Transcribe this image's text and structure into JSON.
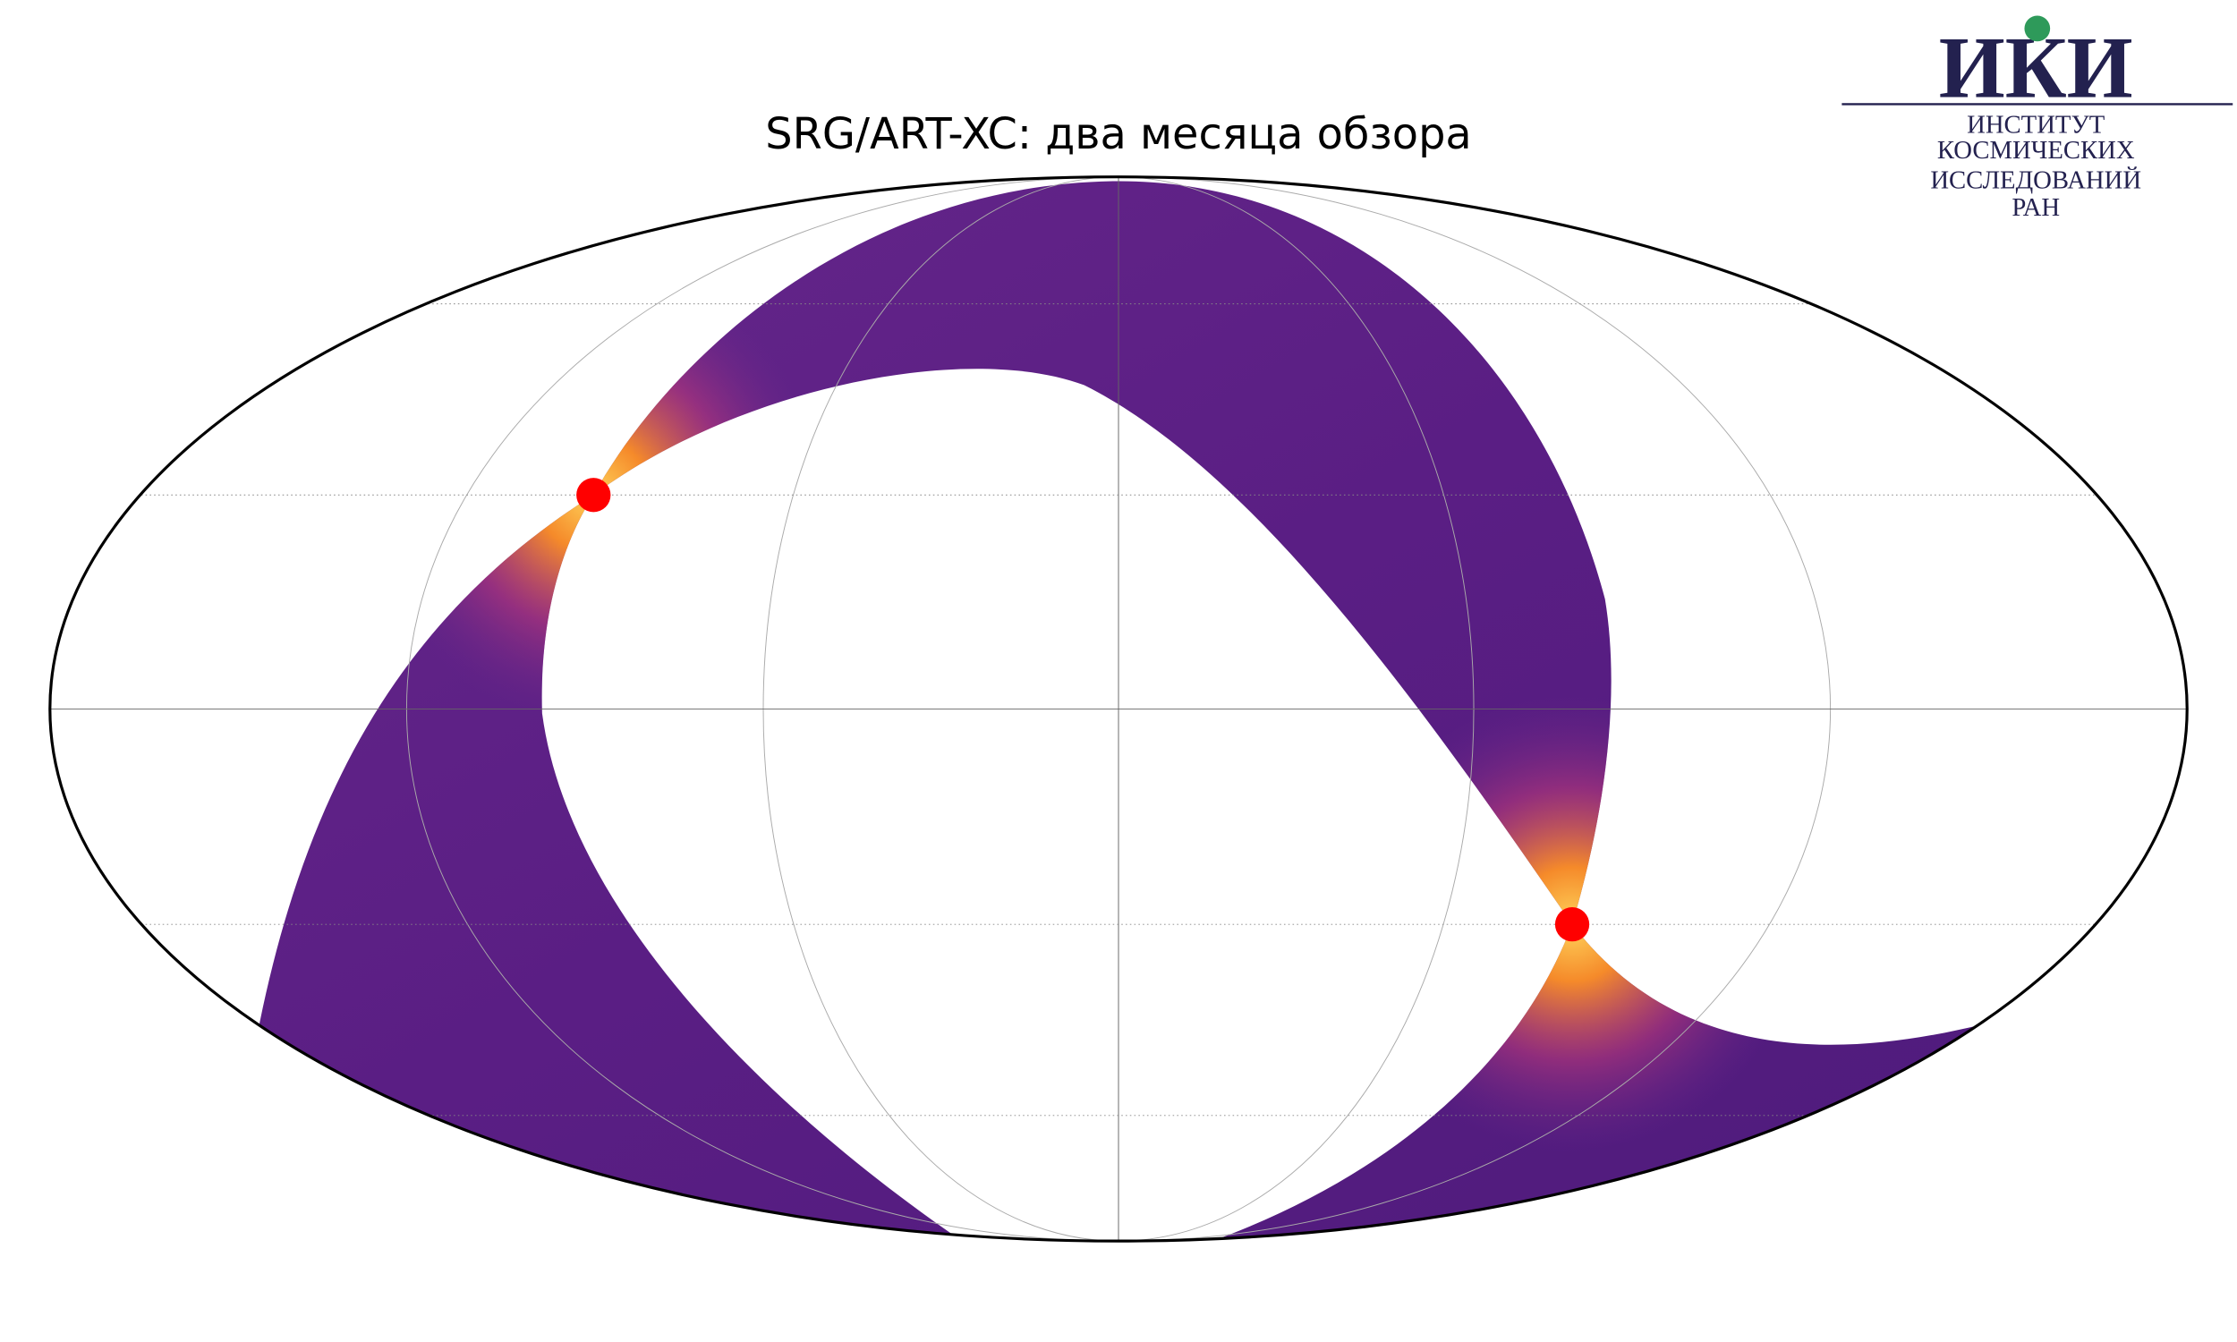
{
  "title": "SRG/ART-XC: два месяца обзора",
  "logo": {
    "mark": "ИКИ",
    "lines": [
      "ИНСТИТУТ",
      "КОСМИЧЕСКИХ",
      "ИССЛЕДОВАНИЙ",
      "РАН"
    ]
  }
}
